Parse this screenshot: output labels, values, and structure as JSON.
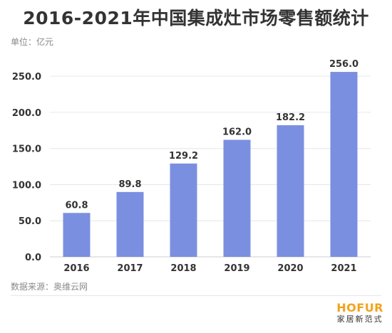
{
  "title": "2016-2021年中国集成灶市场零售额统计",
  "unit_label": "单位：亿元",
  "source": "数据来源：奥维云网",
  "logo": {
    "main": "HOFUR",
    "sub": "家居新范式"
  },
  "colors": {
    "bar": "#7b8fe0",
    "text": "#333333",
    "muted": "#8a8a8a",
    "grid": "#e6e6e6",
    "logo": "#f2a31b"
  },
  "chart_data": {
    "type": "bar",
    "title": "2016-2021年中国集成灶市场零售额统计",
    "xlabel": "",
    "ylabel": "单位：亿元",
    "categories": [
      "2016",
      "2017",
      "2018",
      "2019",
      "2020",
      "2021"
    ],
    "values": [
      60.8,
      89.8,
      129.2,
      162.0,
      182.2,
      256.0
    ],
    "value_labels": [
      "60.8",
      "89.8",
      "129.2",
      "162.0",
      "182.2",
      "256.0"
    ],
    "y_ticks": [
      "0.0",
      "50.0",
      "100.0",
      "150.0",
      "200.0",
      "250.0"
    ],
    "ylim": [
      0,
      260
    ],
    "grid": true,
    "legend": "none"
  }
}
